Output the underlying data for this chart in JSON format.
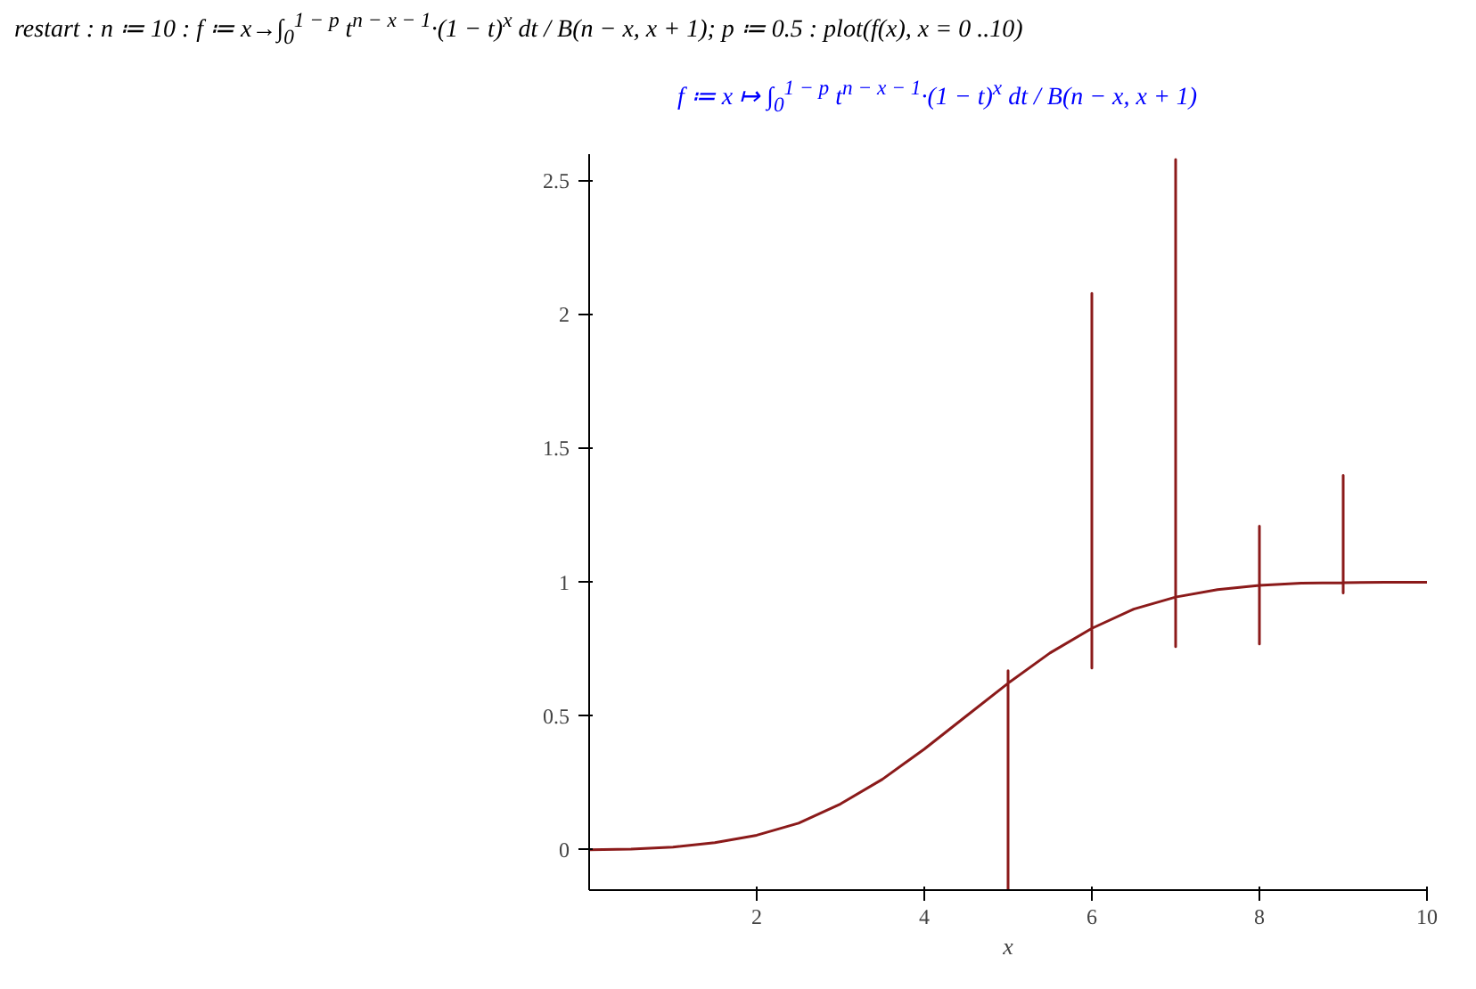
{
  "chart_data": {
    "type": "line",
    "xlabel": "x",
    "annotations": [
      "restart : n ≔ 10 : f ≔ x→∫$_{0}$$^{1 − p}$ t$^{n − x − 1}$·(1 − t)$^{x}$ dt / B(n − x, x + 1); p ≔ 0.5 : plot(f(x), x = 0 ..10)",
      "f ≔ x ↦ ∫$_{0}$$^{1 − p}$ t$^{n − x − 1}$·(1 − t)$^{x}$ dt / B(n − x, x + 1)"
    ],
    "series": [
      {
        "color": "#8b1a1a",
        "x": [
          0,
          0.5,
          1,
          1.5,
          2,
          2.5,
          3,
          3.5,
          4,
          4.5,
          5,
          5,
          5,
          5,
          5.5,
          6,
          6,
          6,
          6,
          6.5,
          7,
          7,
          7,
          7,
          7.5,
          8,
          8,
          8,
          8,
          8.5,
          9,
          9,
          9,
          9,
          9.5,
          10
        ],
        "values": [
          0.001,
          0.003,
          0.011,
          0.027,
          0.055,
          0.1,
          0.172,
          0.264,
          0.377,
          0.5,
          0.623,
          -0.15,
          0.67,
          0.623,
          0.736,
          0.828,
          2.08,
          0.68,
          0.828,
          0.9,
          0.945,
          2.58,
          0.76,
          0.945,
          0.973,
          0.989,
          1.21,
          0.77,
          0.989,
          0.997,
          0.999,
          1.4,
          0.96,
          0.999,
          1.0,
          1.0
        ]
      }
    ],
    "xlim": [
      0,
      10
    ],
    "ylim": [
      -0.15,
      2.6
    ],
    "xticks": [
      2,
      4,
      6,
      8,
      10
    ],
    "yticks": [
      0,
      0.5,
      1,
      1.5,
      2,
      2.5
    ],
    "grid": false,
    "marker": "none",
    "line_style": "solid"
  }
}
